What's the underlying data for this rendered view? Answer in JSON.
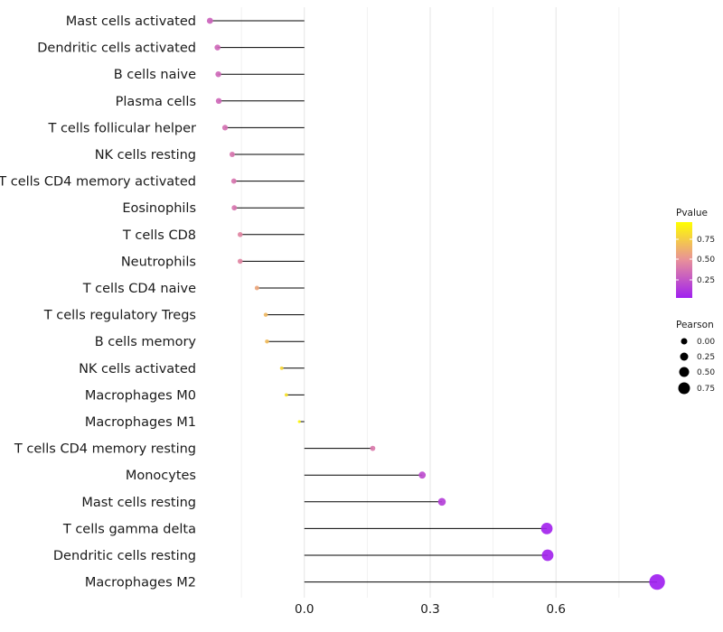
{
  "chart_data": {
    "type": "lollipop",
    "title": "",
    "xlabel": "",
    "ylabel": "",
    "xlim": [
      -0.23,
      0.83
    ],
    "x_ticks": [
      0.0,
      0.3,
      0.6
    ],
    "x_tick_labels": [
      "0.0",
      "0.3",
      "0.6"
    ],
    "categories": [
      "Mast cells activated",
      "Dendritic cells activated",
      "B cells naive",
      "Plasma cells",
      "T cells follicular helper",
      "NK cells resting",
      "T cells CD4 memory activated",
      "Eosinophils",
      "T cells CD8",
      "Neutrophils",
      "T cells CD4 naive",
      "T cells regulatory  Tregs ",
      "B cells memory",
      "NK cells activated",
      "Macrophages M0",
      "Macrophages M1",
      "T cells CD4 memory resting",
      "Monocytes",
      "Mast cells resting",
      "T cells gamma delta",
      "Dendritic cells resting",
      "Macrophages M2"
    ],
    "values": [
      -0.225,
      -0.207,
      -0.205,
      -0.204,
      -0.189,
      -0.172,
      -0.168,
      -0.167,
      -0.153,
      -0.153,
      -0.113,
      -0.092,
      -0.089,
      -0.054,
      -0.043,
      -0.012,
      0.163,
      0.281,
      0.328,
      0.578,
      0.58,
      0.841
    ],
    "pvalues": [
      0.3,
      0.32,
      0.32,
      0.32,
      0.36,
      0.38,
      0.38,
      0.38,
      0.45,
      0.45,
      0.6,
      0.68,
      0.7,
      0.82,
      0.87,
      0.96,
      0.4,
      0.2,
      0.14,
      0.02,
      0.02,
      0.0
    ],
    "size_metric": "Pearson",
    "color_metric": "Pvalue",
    "color_legend": {
      "title": "Pvalue",
      "ticks": [
        "0.25",
        "0.50",
        "0.75"
      ],
      "low_color": "#a020f0",
      "mid_color": "#e8909a",
      "high_color": "#ffff00"
    },
    "size_legend": {
      "title": "Pearson",
      "entries": [
        "0.00",
        "0.25",
        "0.50",
        "0.75"
      ]
    }
  }
}
